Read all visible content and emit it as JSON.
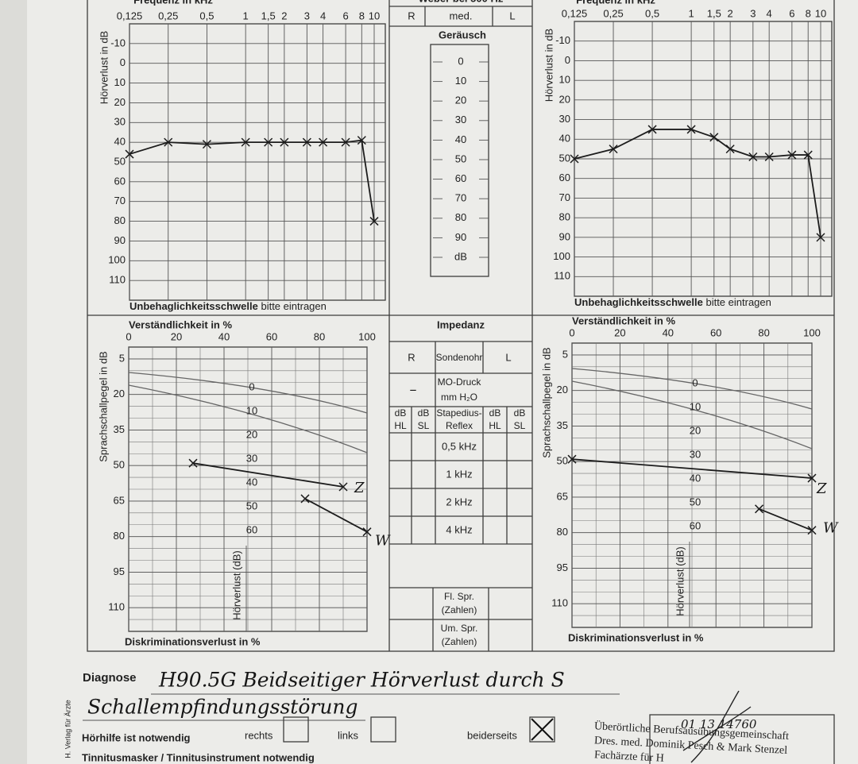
{
  "chart_data": [
    {
      "type": "line",
      "title": "Frequenz in kHz",
      "y_label": "Hörverlust in dB",
      "footer_bold": "Unbehaglichkeitsschwelle",
      "footer": "bitte eintragen",
      "x": [
        0.125,
        0.25,
        0.5,
        1,
        1.5,
        2,
        3,
        4,
        6,
        8,
        10
      ],
      "xlim": [
        0.125,
        10
      ],
      "x_log": true,
      "xticks": [
        {
          "value": 0.125,
          "label": "0,125"
        },
        {
          "value": 0.25,
          "label": "0,25"
        },
        {
          "value": 0.5,
          "label": "0,5"
        },
        1,
        {
          "value": 1.5,
          "label": "1,5"
        },
        2,
        3,
        4,
        6,
        8,
        10
      ],
      "ylim": [
        -20,
        120
      ],
      "y_inverted": true,
      "yticks": [
        -10,
        0,
        10,
        20,
        30,
        40,
        50,
        60,
        70,
        80,
        90,
        100,
        110
      ],
      "grid": true,
      "series": [
        {
          "color": "#1c1c1c",
          "marker": "x",
          "values": [
            46,
            40,
            41,
            40,
            40,
            40,
            40,
            40,
            40,
            39,
            80
          ]
        }
      ]
    },
    {
      "type": "line",
      "title": "Frequenz in kHz",
      "y_label": "Hörverlust in dB",
      "footer_bold": "Unbehaglichkeitsschwelle",
      "footer": "bitte eintragen",
      "x": [
        0.125,
        0.25,
        0.5,
        1,
        1.5,
        2,
        3,
        4,
        6,
        8,
        10
      ],
      "xlim": [
        0.125,
        10
      ],
      "x_log": true,
      "xticks": [
        {
          "value": 0.125,
          "label": "0,125"
        },
        {
          "value": 0.25,
          "label": "0,25"
        },
        {
          "value": 0.5,
          "label": "0,5"
        },
        1,
        {
          "value": 1.5,
          "label": "1,5"
        },
        2,
        3,
        4,
        6,
        8,
        10
      ],
      "ylim": [
        -20,
        120
      ],
      "y_inverted": true,
      "yticks": [
        -10,
        0,
        10,
        20,
        30,
        40,
        50,
        60,
        70,
        80,
        90,
        100,
        110
      ],
      "grid": true,
      "series": [
        {
          "color": "#1c1c1c",
          "marker": "x",
          "values": [
            50,
            45,
            35,
            35,
            39,
            45,
            49,
            49,
            48,
            48,
            90
          ]
        }
      ]
    },
    {
      "type": "line",
      "title": "Verständlichkeit in %",
      "y_label": "Sprachschallpegel in dB",
      "footer_bold": "Diskriminationsverlust in %",
      "xlim": [
        0,
        100
      ],
      "xticks": [
        0,
        20,
        40,
        60,
        80,
        100
      ],
      "ylim": [
        0,
        120
      ],
      "y_inverted": true,
      "yticks": [
        5,
        20,
        35,
        50,
        65,
        80,
        95,
        110
      ],
      "grid": true,
      "loss_label": "Hörverlust (dB)",
      "loss_ticks": [
        0,
        10,
        20,
        30,
        40,
        50,
        60
      ],
      "series": [
        {
          "name": "Z",
          "color": "#1c1c1c",
          "marker": "x",
          "x": [
            27,
            90
          ],
          "values": [
            49,
            59
          ]
        },
        {
          "name": "W",
          "color": "#1c1c1c",
          "marker": "x",
          "x": [
            74,
            100
          ],
          "values": [
            64,
            78
          ]
        }
      ]
    },
    {
      "type": "line",
      "title": "Verständlichkeit in %",
      "y_label": "Sprachschallpegel in dB",
      "footer_bold": "Diskriminationsverlust in %",
      "xlim": [
        0,
        100
      ],
      "xticks": [
        0,
        20,
        40,
        60,
        80,
        100
      ],
      "ylim": [
        0,
        120
      ],
      "y_inverted": true,
      "yticks": [
        5,
        20,
        35,
        50,
        65,
        80,
        95,
        110
      ],
      "grid": true,
      "loss_label": "Hörverlust (dB)",
      "loss_ticks": [
        0,
        10,
        20,
        30,
        40,
        50,
        60
      ],
      "series": [
        {
          "name": "Z",
          "color": "#1c1c1c",
          "marker": "x",
          "x": [
            0,
            100
          ],
          "values": [
            49,
            57
          ]
        },
        {
          "name": "W",
          "color": "#1c1c1c",
          "marker": "x",
          "x": [
            78,
            100
          ],
          "values": [
            70,
            79
          ]
        }
      ]
    }
  ],
  "weber": {
    "title": "Weber bei 500 Hz",
    "right": "R",
    "median": "med.",
    "left": "L",
    "noise": "Geräusch",
    "noise_scale": [
      0,
      10,
      20,
      30,
      40,
      50,
      60,
      70,
      80,
      90
    ],
    "unit": "dB"
  },
  "impedance": {
    "title": "Impedanz",
    "right": "R",
    "probe": "Sondenohr",
    "left": "L",
    "pressure_value": "–",
    "pressure": [
      "MO-Druck",
      "mm H₂O"
    ],
    "columns": [
      [
        "dB",
        "HL"
      ],
      [
        "dB",
        "SL"
      ],
      [
        "Stapedius-",
        "Reflex"
      ],
      [
        "dB",
        "HL"
      ],
      [
        "dB",
        "SL"
      ]
    ],
    "frequencies": [
      "0,5 kHz",
      "1 kHz",
      "2 kHz",
      "4 kHz"
    ],
    "speech": [
      [
        "Fl. Spr.",
        "(Zahlen)"
      ],
      [
        "Um. Spr.",
        "(Zahlen)"
      ]
    ]
  },
  "diagnosis": {
    "label": "Diagnose",
    "text": [
      "H90.5G Beidseitiger Hörverlust durch S",
      "Schallempfindungsstörung"
    ]
  },
  "hearing_aid": {
    "label": "Hörhilfe ist notwendig",
    "right": "rechts",
    "left": "links",
    "both": "beiderseits",
    "checked": "both"
  },
  "tinnitus": "Tinnitusmasker / Tinnitusinstrument notwendig",
  "stamp": {
    "number": "01 13 14760",
    "lines": [
      "Überörtliche Berufsausübungsgemeinschaft",
      "Dres. med. Dominik Pesch & Mark Stenzel",
      "Fachärzte für H"
    ]
  },
  "publisher": "H. Verlag für Ärzte"
}
